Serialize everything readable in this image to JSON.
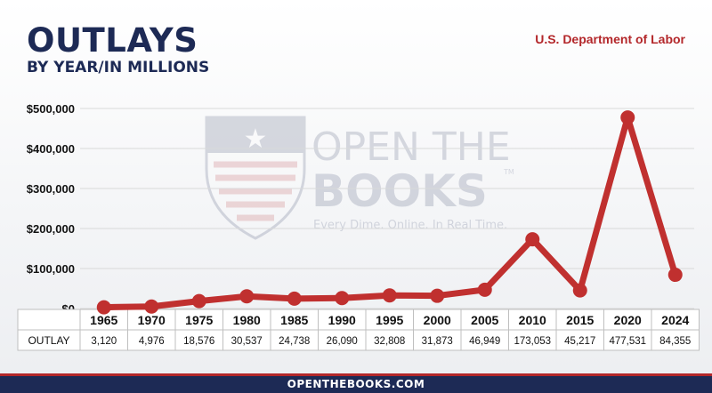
{
  "header": {
    "title": "OUTLAYS",
    "subtitle": "BY YEAR/IN MILLIONS",
    "agency": "U.S. Department of Labor"
  },
  "watermark": {
    "line1": "OPEN THE",
    "line2": "BOOKS",
    "tm": "TM",
    "tagline": "Every Dime. Online. In Real Time."
  },
  "footer": {
    "text": "OPENTHEBOOKS.COM"
  },
  "colors": {
    "navy": "#1d2a55",
    "red": "#b3272a",
    "line": "#c0302f",
    "grid": "#d9d9d9"
  },
  "chart_data": {
    "type": "line",
    "title": "OUTLAYS",
    "subtitle": "BY YEAR/IN MILLIONS",
    "x": [
      "1965",
      "1970",
      "1975",
      "1980",
      "1985",
      "1990",
      "1995",
      "2000",
      "2005",
      "2010",
      "2015",
      "2020",
      "2024"
    ],
    "series": [
      {
        "values": [
          3120,
          4976,
          18576,
          30537,
          24738,
          26090,
          32808,
          31873,
          46949,
          173053,
          45217,
          477531,
          84355
        ]
      }
    ],
    "table": {
      "row_label": "OUTLAY",
      "values": [
        "3,120",
        "4,976",
        "18,576",
        "30,537",
        "24,738",
        "26,090",
        "32,808",
        "31,873",
        "46,949",
        "173,053",
        "45,217",
        "477,531",
        "84,355"
      ]
    },
    "ylim": [
      0,
      500000
    ],
    "yticks": [
      0,
      100000,
      200000,
      300000,
      400000,
      500000
    ],
    "ytick_labels": [
      "$0",
      "$100,000",
      "$200,000",
      "$300,000",
      "$400,000",
      "$500,000"
    ],
    "grid": true,
    "legend": "none"
  }
}
